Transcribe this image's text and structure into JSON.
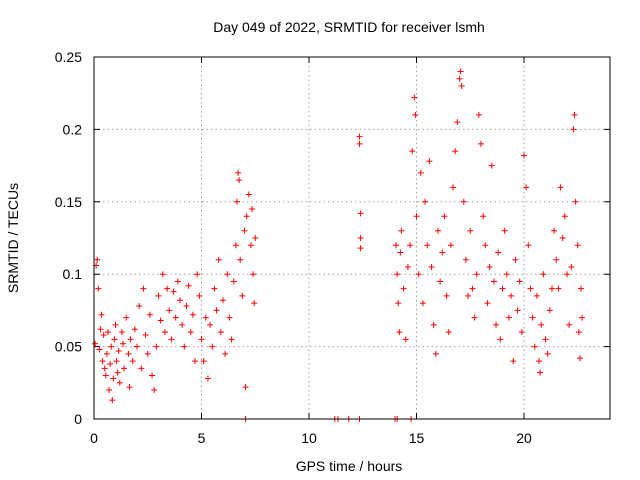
{
  "chart_data": {
    "type": "scatter",
    "title": "Day 049 of 2022, SRMTID for receiver lsmh",
    "xlabel": "GPS time / hours",
    "ylabel": "SRMTID / TECUs",
    "xlim": [
      0,
      24
    ],
    "ylim": [
      0,
      0.25
    ],
    "x_ticks": [
      {
        "value": 0,
        "label": "0"
      },
      {
        "value": 5,
        "label": "5"
      },
      {
        "value": 10,
        "label": "10"
      },
      {
        "value": 15,
        "label": "15"
      },
      {
        "value": 20,
        "label": "20"
      }
    ],
    "y_ticks": [
      {
        "value": 0,
        "label": "0"
      },
      {
        "value": 0.05,
        "label": "0.05"
      },
      {
        "value": 0.1,
        "label": "0.1"
      },
      {
        "value": 0.15,
        "label": "0.15"
      },
      {
        "value": 0.2,
        "label": "0.2"
      },
      {
        "value": 0.25,
        "label": "0.25"
      }
    ],
    "grid": true,
    "marker": "+",
    "color": "#ff0000",
    "series": [
      {
        "name": "SRMTID",
        "points": [
          [
            0.05,
            0.052
          ],
          [
            0.1,
            0.106
          ],
          [
            0.15,
            0.11
          ],
          [
            0.2,
            0.09
          ],
          [
            0.25,
            0.048
          ],
          [
            0.3,
            0.062
          ],
          [
            0.35,
            0.072
          ],
          [
            0.4,
            0.04
          ],
          [
            0.45,
            0.058
          ],
          [
            0.5,
            0.035
          ],
          [
            0.55,
            0.03
          ],
          [
            0.6,
            0.045
          ],
          [
            0.65,
            0.06
          ],
          [
            0.7,
            0.02
          ],
          [
            0.75,
            0.038
          ],
          [
            0.8,
            0.05
          ],
          [
            0.85,
            0.013
          ],
          [
            0.9,
            0.028
          ],
          [
            0.95,
            0.055
          ],
          [
            1.0,
            0.065
          ],
          [
            1.05,
            0.04
          ],
          [
            1.1,
            0.032
          ],
          [
            1.15,
            0.047
          ],
          [
            1.2,
            0.025
          ],
          [
            1.3,
            0.06
          ],
          [
            1.35,
            0.052
          ],
          [
            1.4,
            0.035
          ],
          [
            1.5,
            0.07
          ],
          [
            1.6,
            0.045
          ],
          [
            1.65,
            0.022
          ],
          [
            1.7,
            0.055
          ],
          [
            1.8,
            0.04
          ],
          [
            1.9,
            0.062
          ],
          [
            2.0,
            0.05
          ],
          [
            2.1,
            0.078
          ],
          [
            2.2,
            0.035
          ],
          [
            2.3,
            0.09
          ],
          [
            2.4,
            0.058
          ],
          [
            2.5,
            0.045
          ],
          [
            2.6,
            0.072
          ],
          [
            2.7,
            0.03
          ],
          [
            2.8,
            0.02
          ],
          [
            2.9,
            0.05
          ],
          [
            3.0,
            0.085
          ],
          [
            3.1,
            0.068
          ],
          [
            3.2,
            0.1
          ],
          [
            3.3,
            0.06
          ],
          [
            3.4,
            0.09
          ],
          [
            3.5,
            0.075
          ],
          [
            3.6,
            0.055
          ],
          [
            3.7,
            0.088
          ],
          [
            3.8,
            0.07
          ],
          [
            3.9,
            0.095
          ],
          [
            4.0,
            0.082
          ],
          [
            4.1,
            0.065
          ],
          [
            4.2,
            0.05
          ],
          [
            4.3,
            0.078
          ],
          [
            4.4,
            0.092
          ],
          [
            4.5,
            0.06
          ],
          [
            4.6,
            0.072
          ],
          [
            4.7,
            0.04
          ],
          [
            4.8,
            0.1
          ],
          [
            4.9,
            0.085
          ],
          [
            5.0,
            0.055
          ],
          [
            5.1,
            0.04
          ],
          [
            5.2,
            0.07
          ],
          [
            5.3,
            0.028
          ],
          [
            5.4,
            0.065
          ],
          [
            5.5,
            0.05
          ],
          [
            5.6,
            0.09
          ],
          [
            5.7,
            0.075
          ],
          [
            5.8,
            0.11
          ],
          [
            5.9,
            0.06
          ],
          [
            6.0,
            0.082
          ],
          [
            6.1,
            0.045
          ],
          [
            6.2,
            0.1
          ],
          [
            6.3,
            0.07
          ],
          [
            6.4,
            0.055
          ],
          [
            6.5,
            0.095
          ],
          [
            6.6,
            0.12
          ],
          [
            6.65,
            0.15
          ],
          [
            6.7,
            0.17
          ],
          [
            6.75,
            0.165
          ],
          [
            6.8,
            0.11
          ],
          [
            6.9,
            0.085
          ],
          [
            7.0,
            0.13
          ],
          [
            7.05,
            0.022
          ],
          [
            7.1,
            0.14
          ],
          [
            7.2,
            0.155
          ],
          [
            7.3,
            0.12
          ],
          [
            7.35,
            0.145
          ],
          [
            7.4,
            0.1
          ],
          [
            7.45,
            0.08
          ],
          [
            7.5,
            0.125
          ],
          [
            12.35,
            0.195
          ],
          [
            12.35,
            0.19
          ],
          [
            12.4,
            0.142
          ],
          [
            12.4,
            0.125
          ],
          [
            12.4,
            0.118
          ],
          [
            14.05,
            0.12
          ],
          [
            14.1,
            0.1
          ],
          [
            14.15,
            0.08
          ],
          [
            14.2,
            0.06
          ],
          [
            14.25,
            0.115
          ],
          [
            14.3,
            0.13
          ],
          [
            14.4,
            0.09
          ],
          [
            14.5,
            0.055
          ],
          [
            14.6,
            0.105
          ],
          [
            14.7,
            0.12
          ],
          [
            14.8,
            0.185
          ],
          [
            14.9,
            0.222
          ],
          [
            14.95,
            0.21
          ],
          [
            15.0,
            0.14
          ],
          [
            15.1,
            0.1
          ],
          [
            15.2,
            0.17
          ],
          [
            15.3,
            0.08
          ],
          [
            15.4,
            0.15
          ],
          [
            15.5,
            0.12
          ],
          [
            15.6,
            0.178
          ],
          [
            15.7,
            0.105
          ],
          [
            15.8,
            0.065
          ],
          [
            15.9,
            0.045
          ],
          [
            16.0,
            0.13
          ],
          [
            16.1,
            0.095
          ],
          [
            16.2,
            0.115
          ],
          [
            16.3,
            0.14
          ],
          [
            16.4,
            0.085
          ],
          [
            16.5,
            0.06
          ],
          [
            16.6,
            0.12
          ],
          [
            16.7,
            0.16
          ],
          [
            16.8,
            0.185
          ],
          [
            16.9,
            0.205
          ],
          [
            17.0,
            0.235
          ],
          [
            17.05,
            0.24
          ],
          [
            17.1,
            0.23
          ],
          [
            17.2,
            0.15
          ],
          [
            17.3,
            0.11
          ],
          [
            17.4,
            0.085
          ],
          [
            17.5,
            0.13
          ],
          [
            17.6,
            0.09
          ],
          [
            17.7,
            0.07
          ],
          [
            17.8,
            0.1
          ],
          [
            17.9,
            0.21
          ],
          [
            18.0,
            0.19
          ],
          [
            18.1,
            0.14
          ],
          [
            18.2,
            0.12
          ],
          [
            18.3,
            0.08
          ],
          [
            18.4,
            0.105
          ],
          [
            18.5,
            0.175
          ],
          [
            18.6,
            0.095
          ],
          [
            18.7,
            0.065
          ],
          [
            18.8,
            0.115
          ],
          [
            18.9,
            0.055
          ],
          [
            19.0,
            0.09
          ],
          [
            19.1,
            0.13
          ],
          [
            19.2,
            0.1
          ],
          [
            19.3,
            0.07
          ],
          [
            19.4,
            0.085
          ],
          [
            19.5,
            0.04
          ],
          [
            19.6,
            0.11
          ],
          [
            19.7,
            0.075
          ],
          [
            19.8,
            0.095
          ],
          [
            19.9,
            0.06
          ],
          [
            20.0,
            0.182
          ],
          [
            20.1,
            0.16
          ],
          [
            20.2,
            0.12
          ],
          [
            20.3,
            0.09
          ],
          [
            20.4,
            0.07
          ],
          [
            20.5,
            0.05
          ],
          [
            20.6,
            0.085
          ],
          [
            20.7,
            0.04
          ],
          [
            20.75,
            0.032
          ],
          [
            20.8,
            0.065
          ],
          [
            20.9,
            0.1
          ],
          [
            21.0,
            0.055
          ],
          [
            21.1,
            0.045
          ],
          [
            21.2,
            0.075
          ],
          [
            21.3,
            0.09
          ],
          [
            21.4,
            0.13
          ],
          [
            21.5,
            0.11
          ],
          [
            21.6,
            0.09
          ],
          [
            21.7,
            0.16
          ],
          [
            21.8,
            0.125
          ],
          [
            21.9,
            0.14
          ],
          [
            22.0,
            0.1
          ],
          [
            22.1,
            0.065
          ],
          [
            22.2,
            0.105
          ],
          [
            22.3,
            0.2
          ],
          [
            22.35,
            0.21
          ],
          [
            22.4,
            0.15
          ],
          [
            22.5,
            0.12
          ],
          [
            22.55,
            0.06
          ],
          [
            22.6,
            0.042
          ],
          [
            22.65,
            0.09
          ],
          [
            22.7,
            0.07
          ]
        ]
      }
    ],
    "zero_points_x": [
      7.05,
      11.2,
      11.35,
      11.85,
      12.35,
      14.0,
      14.1,
      14.75
    ]
  }
}
